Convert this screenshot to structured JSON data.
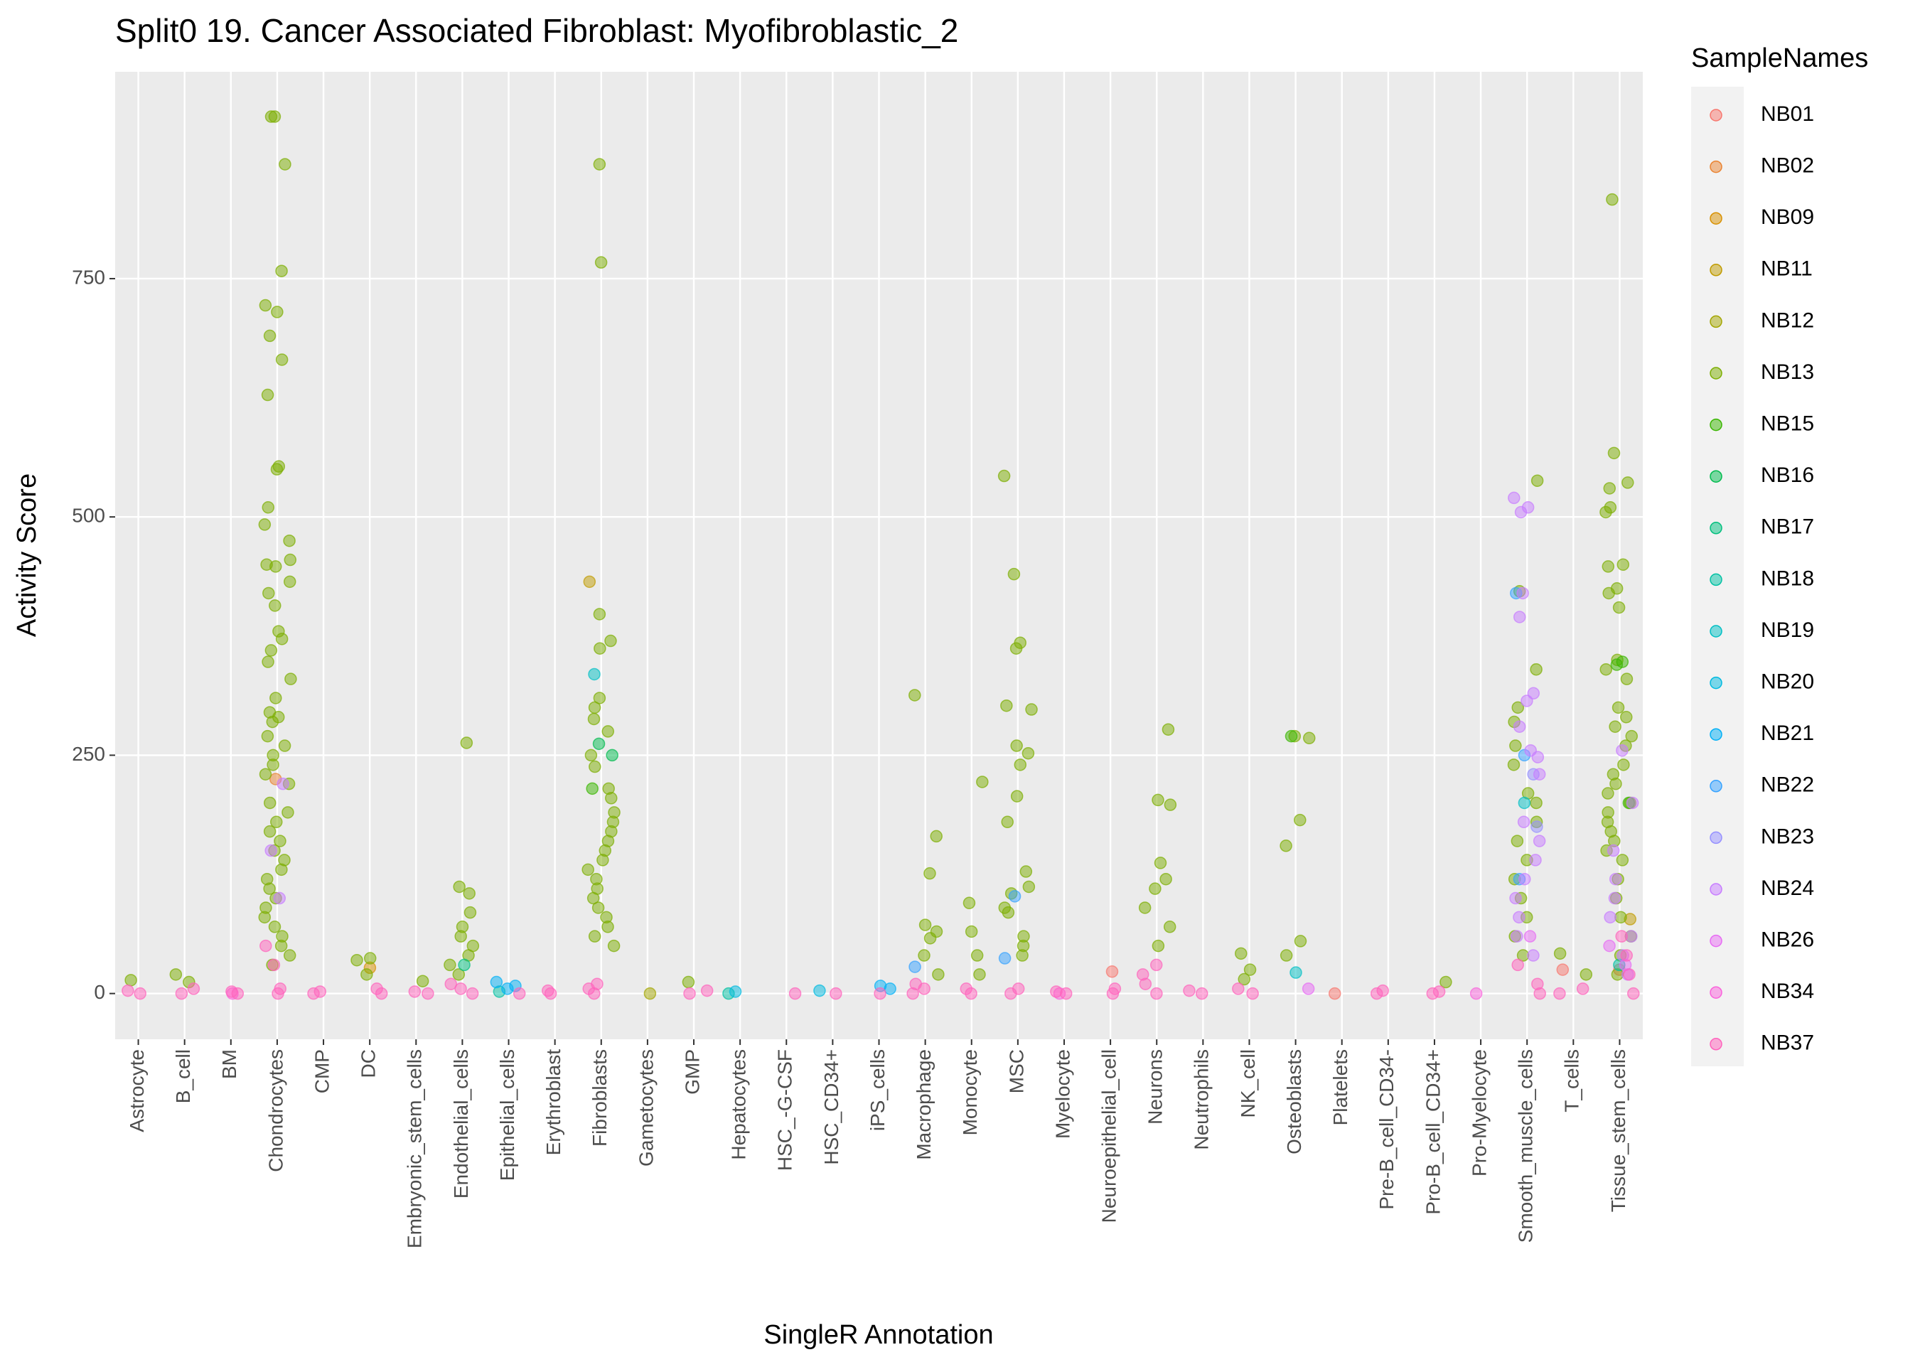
{
  "chart_data": {
    "type": "strip",
    "title": "Split0 19. Cancer Associated Fibroblast: Myofibroblastic_2",
    "x_label": "SingleR Annotation",
    "y_label": "Activity Score",
    "legend_title": "SampleNames",
    "categories": [
      "Astrocyte",
      "B_cell",
      "BM",
      "Chondrocytes",
      "CMP",
      "DC",
      "Embryonic_stem_cells",
      "Endothelial_cells",
      "Epithelial_cells",
      "Erythroblast",
      "Fibroblasts",
      "Gametocytes",
      "GMP",
      "Hepatocytes",
      "HSC_-G-CSF",
      "HSC_CD34+",
      "iPS_cells",
      "Macrophage",
      "Monocyte",
      "MSC",
      "Myelocyte",
      "Neuroepithelial_cell",
      "Neurons",
      "Neutrophils",
      "NK_cell",
      "Osteoblasts",
      "Platelets",
      "Pre-B_cell_CD34-",
      "Pro-B_cell_CD34+",
      "Pro-Myelocyte",
      "Smooth_muscle_cells",
      "T_cells",
      "Tissue_stem_cells"
    ],
    "ylim": [
      -48,
      967
    ],
    "yticks": [
      0,
      250,
      500,
      750
    ],
    "grid": true,
    "series": [
      {
        "name": "NB01",
        "color": "#F8766D",
        "values": {
          "Tissue_stem_cells": [
            25
          ],
          "Neuroepithelial_cell": [
            23
          ],
          "T_cells": [
            25
          ],
          "Platelets": [
            0
          ]
        }
      },
      {
        "name": "NB02",
        "color": "#EA8331",
        "values": {
          "Chondrocytes": [
            225
          ]
        }
      },
      {
        "name": "NB09",
        "color": "#D89000",
        "values": {
          "DC": [
            27
          ]
        }
      },
      {
        "name": "NB11",
        "color": "#C09B00",
        "values": {
          "Fibroblasts": [
            432
          ],
          "Tissue_stem_cells": [
            78
          ]
        }
      },
      {
        "name": "NB12",
        "color": "#A3A500",
        "values": {
          "Gametocytes": [
            0
          ]
        }
      },
      {
        "name": "NB13",
        "color": "#7CAE00",
        "values": {
          "Chondrocytes": [
            920,
            920,
            870,
            758,
            722,
            715,
            690,
            665,
            628,
            553,
            550,
            510,
            492,
            475,
            455,
            450,
            448,
            432,
            420,
            407,
            380,
            372,
            360,
            348,
            330,
            310,
            295,
            290,
            285,
            270,
            260,
            250,
            240,
            230,
            220,
            200,
            190,
            180,
            170,
            160,
            150,
            140,
            130,
            120,
            110,
            100,
            90,
            80,
            70,
            60,
            50,
            40,
            30
          ],
          "Fibroblasts": [
            870,
            767,
            398,
            370,
            362,
            310,
            300,
            288,
            275,
            250,
            238,
            215,
            205,
            190,
            180,
            170,
            160,
            150,
            140,
            130,
            120,
            110,
            100,
            90,
            80,
            70,
            60,
            50
          ],
          "MSC": [
            543,
            440,
            368,
            362,
            302,
            298,
            260,
            252,
            240,
            207,
            180,
            128,
            112,
            105,
            90,
            85,
            60,
            50,
            40
          ],
          "Smooth_muscle_cells": [
            538,
            422,
            340,
            300,
            285,
            260,
            240,
            210,
            200,
            180,
            160,
            140,
            120,
            100,
            80,
            60,
            40
          ],
          "Tissue_stem_cells": [
            833,
            567,
            536,
            530,
            510,
            505,
            450,
            448,
            425,
            420,
            405,
            350,
            340,
            330,
            300,
            290,
            280,
            270,
            260,
            240,
            230,
            220,
            210,
            200,
            190,
            180,
            170,
            160,
            150,
            140,
            120,
            100,
            80,
            60,
            40,
            20
          ],
          "Macrophage": [
            313,
            165,
            126,
            72,
            65,
            58,
            40,
            20
          ],
          "Monocyte": [
            222,
            95,
            65,
            40,
            20
          ],
          "Neurons": [
            277,
            203,
            198,
            137,
            120,
            110,
            90,
            70,
            50
          ],
          "Endothelial_cells": [
            263,
            112,
            105,
            85,
            70,
            60,
            50,
            40,
            30,
            20
          ],
          "Osteoblasts": [
            270,
            268,
            182,
            155,
            55,
            40
          ],
          "NK_cell": [
            42,
            25,
            15
          ],
          "T_cells": [
            42,
            20
          ],
          "DC": [
            37,
            35,
            20
          ],
          "B_cell": [
            20,
            12
          ],
          "Astrocyte": [
            14
          ],
          "Embryonic_stem_cells": [
            13
          ],
          "GMP": [
            12
          ],
          "Pro-B_cell_CD34+": [
            12
          ]
        }
      },
      {
        "name": "NB15",
        "color": "#39B600",
        "values": {
          "Tissue_stem_cells": [
            348,
            345,
            200
          ],
          "Fibroblasts": [
            215
          ],
          "Osteoblasts": [
            270
          ]
        }
      },
      {
        "name": "NB16",
        "color": "#00BB4E",
        "values": {
          "Fibroblasts": [
            262,
            250
          ]
        }
      },
      {
        "name": "NB17",
        "color": "#00BF7D",
        "values": {
          "Endothelial_cells": [
            30
          ]
        }
      },
      {
        "name": "NB18",
        "color": "#00C1A3",
        "values": {
          "Hepatocytes": [
            0
          ],
          "Epithelial_cells": [
            2
          ],
          "Tissue_stem_cells": [
            30
          ]
        }
      },
      {
        "name": "NB19",
        "color": "#00BFC4",
        "values": {
          "Fibroblasts": [
            335
          ],
          "Smooth_muscle_cells": [
            200
          ],
          "Osteoblasts": [
            22
          ]
        }
      },
      {
        "name": "NB20",
        "color": "#00BAE0",
        "values": {
          "Hepatocytes": [
            2
          ],
          "HSC_CD34+": [
            3
          ]
        }
      },
      {
        "name": "NB21",
        "color": "#00B0F6",
        "values": {
          "Epithelial_cells": [
            12,
            8,
            5
          ],
          "iPS_cells": [
            8,
            5
          ]
        }
      },
      {
        "name": "NB22",
        "color": "#35A2FF",
        "values": {
          "Smooth_muscle_cells": [
            420,
            250,
            120
          ],
          "MSC": [
            102,
            37
          ],
          "Macrophage": [
            28
          ]
        }
      },
      {
        "name": "NB23",
        "color": "#9590FF",
        "values": {
          "Smooth_muscle_cells": [
            230,
            175
          ]
        }
      },
      {
        "name": "NB24",
        "color": "#C77CFF",
        "values": {
          "Smooth_muscle_cells": [
            520,
            510,
            505,
            420,
            395,
            315,
            307,
            280,
            255,
            248,
            230,
            180,
            160,
            140,
            120,
            100,
            80,
            60,
            40
          ],
          "Tissue_stem_cells": [
            255,
            200,
            150,
            120,
            100,
            80,
            60,
            40,
            20
          ],
          "Chondrocytes": [
            220,
            150,
            100
          ]
        }
      },
      {
        "name": "NB26",
        "color": "#E76BF3",
        "values": {
          "Tissue_stem_cells": [
            50,
            30
          ],
          "Osteoblasts": [
            5
          ],
          "Smooth_muscle_cells": [
            60
          ]
        }
      },
      {
        "name": "NB34",
        "color": "#FA62DB",
        "values": {
          "Myelocyte": [
            0
          ],
          "Pro-Myelocyte": [
            0
          ],
          "BM": [
            0
          ]
        }
      },
      {
        "name": "NB37",
        "color": "#FF62BC",
        "values": {
          "Astrocyte": [
            0,
            3
          ],
          "B_cell": [
            0,
            5
          ],
          "BM": [
            0,
            2
          ],
          "Chondrocytes": [
            0,
            5,
            30,
            50
          ],
          "CMP": [
            0,
            2
          ],
          "DC": [
            0,
            5
          ],
          "Embryonic_stem_cells": [
            0,
            2
          ],
          "Endothelial_cells": [
            0,
            5,
            10
          ],
          "Epithelial_cells": [
            0
          ],
          "Erythroblast": [
            0,
            3
          ],
          "Fibroblasts": [
            0,
            5,
            10
          ],
          "GMP": [
            0,
            3
          ],
          "HSC_-G-CSF": [
            0
          ],
          "HSC_CD34+": [
            0
          ],
          "iPS_cells": [
            0
          ],
          "Macrophage": [
            0,
            5,
            10
          ],
          "Monocyte": [
            0,
            5
          ],
          "MSC": [
            0,
            5
          ],
          "Myelocyte": [
            0,
            2
          ],
          "Neuroepithelial_cell": [
            0,
            5
          ],
          "Neurons": [
            0,
            10,
            20,
            30
          ],
          "Neutrophils": [
            0,
            3
          ],
          "NK_cell": [
            0,
            5
          ],
          "Pre-B_cell_CD34-": [
            0,
            3
          ],
          "Pro-B_cell_CD34+": [
            0,
            2
          ],
          "Smooth_muscle_cells": [
            0,
            10,
            30
          ],
          "T_cells": [
            0,
            5
          ],
          "Tissue_stem_cells": [
            0,
            20,
            40,
            60
          ]
        }
      }
    ]
  }
}
